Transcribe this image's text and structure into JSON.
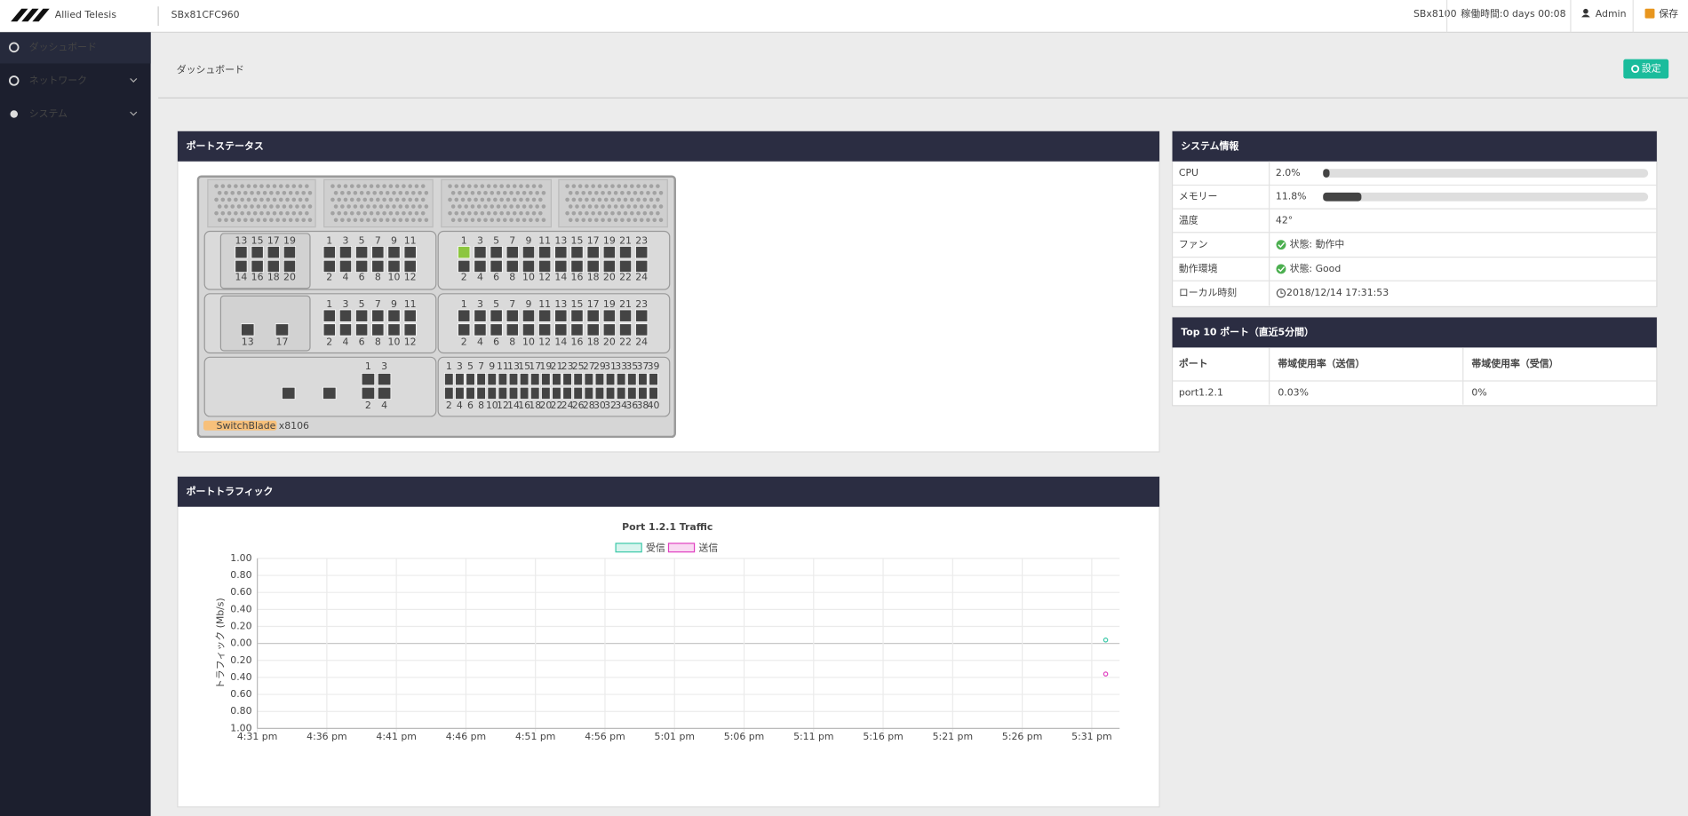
{
  "header": {
    "brand": "Allied Telesis",
    "device": "SBx81CFC960",
    "model": "SBx8100",
    "uptime_label": "稼働時間:",
    "uptime": "0 days 00:08",
    "user": "Admin",
    "save": "保存"
  },
  "sidebar": {
    "items": [
      "ダッシュボード",
      "ネットワーク",
      "システム"
    ]
  },
  "page": {
    "title": "ダッシュボード",
    "settings_button": "設定"
  },
  "port_status": {
    "title": "ポートステータス",
    "chassis_label": "SwitchBlade x8106",
    "link_color": "#8cc63f",
    "rows": [
      {
        "left": {
          "top": [
            13,
            15,
            17,
            19
          ],
          "bottom": [
            14,
            16,
            18,
            20
          ]
        },
        "middle": {
          "top": [
            1,
            3,
            5,
            7,
            9,
            11
          ],
          "bottom": [
            2,
            4,
            6,
            8,
            10,
            12
          ]
        },
        "right": {
          "top": [
            1,
            3,
            5,
            7,
            9,
            11,
            13,
            15,
            17,
            19,
            21,
            23
          ],
          "bottom": [
            2,
            4,
            6,
            8,
            10,
            12,
            14,
            16,
            18,
            20,
            22,
            24
          ],
          "link_up": [
            1
          ]
        }
      },
      {
        "left": {
          "labels": [
            13,
            17
          ]
        },
        "middle": {
          "top": [
            1,
            3,
            5,
            7,
            9,
            11
          ],
          "bottom": [
            2,
            4,
            6,
            8,
            10,
            12
          ]
        },
        "right": {
          "top": [
            1,
            3,
            5,
            7,
            9,
            11,
            13,
            15,
            17,
            19,
            21,
            23
          ],
          "bottom": [
            2,
            4,
            6,
            8,
            10,
            12,
            14,
            16,
            18,
            20,
            22,
            24
          ]
        }
      },
      {
        "left": {
          "top": [
            1,
            3
          ],
          "bottom": [
            2,
            4
          ]
        },
        "right": {
          "top": [
            1,
            3,
            5,
            7,
            9,
            11,
            13,
            15,
            17,
            19,
            21,
            23,
            25,
            27,
            29,
            31,
            33,
            35,
            37,
            39
          ],
          "bottom": [
            2,
            4,
            6,
            8,
            10,
            12,
            14,
            16,
            18,
            20,
            22,
            24,
            26,
            28,
            30,
            32,
            34,
            36,
            38,
            40
          ]
        }
      }
    ]
  },
  "system_info": {
    "title": "システム情報",
    "rows": [
      {
        "label": "CPU",
        "value": 2.0,
        "value_label": "2.0%"
      },
      {
        "label": "メモリー",
        "value": 11.8,
        "value_label": "11.8%"
      },
      {
        "label": "温度",
        "value_label": "42°"
      },
      {
        "label": "ファン",
        "status": "状態: 動作中"
      },
      {
        "label": "動作環境",
        "status": "状態: Good"
      },
      {
        "label": "ローカル時刻",
        "time": "2018/12/14 17:31:53"
      }
    ]
  },
  "top_ports": {
    "title": "Top 10 ポート（直近5分間）",
    "headers": [
      "ポート",
      "帯域使用率（送信）",
      "帯域使用率（受信）"
    ],
    "rows": [
      [
        "port1.2.1",
        "0.03%",
        "0%"
      ]
    ]
  },
  "traffic": {
    "title": "ポートトラフィック"
  },
  "chart_data": {
    "type": "scatter",
    "title": "Port 1.2.1 Traffic",
    "ylabel": "トラフィック (Mb/s)",
    "x": [
      1052
    ],
    "series": [
      {
        "name": "受信",
        "color": "#3cc8a8",
        "values": [
          0.04
        ]
      },
      {
        "name": "送信",
        "color": "#e040c0",
        "values": [
          -0.36
        ]
      }
    ],
    "xlim": [
      991,
      1053
    ],
    "xticks": [
      {
        "value": 991,
        "label": "4:31 pm"
      },
      {
        "value": 996,
        "label": "4:36 pm"
      },
      {
        "value": 1001,
        "label": "4:41 pm"
      },
      {
        "value": 1006,
        "label": "4:46 pm"
      },
      {
        "value": 1011,
        "label": "4:51 pm"
      },
      {
        "value": 1016,
        "label": "4:56 pm"
      },
      {
        "value": 1021,
        "label": "5:01 pm"
      },
      {
        "value": 1026,
        "label": "5:06 pm"
      },
      {
        "value": 1031,
        "label": "5:11 pm"
      },
      {
        "value": 1036,
        "label": "5:16 pm"
      },
      {
        "value": 1041,
        "label": "5:21 pm"
      },
      {
        "value": 1046,
        "label": "5:26 pm"
      },
      {
        "value": 1051,
        "label": "5:31 pm"
      }
    ],
    "ylim": [
      -1,
      1
    ],
    "yticks": [
      {
        "value": 1,
        "label": "1.00"
      },
      {
        "value": 0.8,
        "label": "0.80"
      },
      {
        "value": 0.6,
        "label": "0.60"
      },
      {
        "value": 0.4,
        "label": "0.40"
      },
      {
        "value": 0.2,
        "label": "0.20"
      },
      {
        "value": 0,
        "label": "0.00"
      },
      {
        "value": -0.2,
        "label": "0.20"
      },
      {
        "value": -0.4,
        "label": "0.40"
      },
      {
        "value": -0.6,
        "label": "0.60"
      },
      {
        "value": -0.8,
        "label": "0.80"
      },
      {
        "value": -1,
        "label": "1.00"
      }
    ],
    "grid": true
  }
}
